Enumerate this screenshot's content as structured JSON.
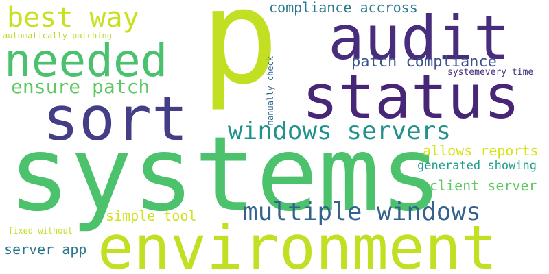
{
  "words": [
    {
      "id": "p",
      "text": "p",
      "color": "#c2df23"
    },
    {
      "id": "systems",
      "text": "systems",
      "color": "#4cc26c"
    },
    {
      "id": "environment",
      "text": "environment",
      "color": "#c2df23"
    },
    {
      "id": "audit",
      "text": "audit",
      "color": "#472d7b"
    },
    {
      "id": "status",
      "text": "status",
      "color": "#482677"
    },
    {
      "id": "sort",
      "text": "sort",
      "color": "#433e85"
    },
    {
      "id": "needed",
      "text": "needed",
      "color": "#4ac16d"
    },
    {
      "id": "best-way",
      "text": "best way",
      "color": "#c8e020"
    },
    {
      "id": "windows-servers",
      "text": "windows servers",
      "color": "#21918c"
    },
    {
      "id": "multiple-windows",
      "text": "multiple windows",
      "color": "#33638d"
    },
    {
      "id": "ensure-patch",
      "text": "ensure patch",
      "color": "#5ec962"
    },
    {
      "id": "patch-compliance",
      "text": "patch compliance",
      "color": "#3b528b"
    },
    {
      "id": "compliance-accross",
      "text": "compliance accross",
      "color": "#2a788e"
    },
    {
      "id": "allows-reports",
      "text": "allows reports",
      "color": "#d8e219"
    },
    {
      "id": "generated-showing",
      "text": "generated showing",
      "color": "#1f9e89"
    },
    {
      "id": "client-server",
      "text": "client server",
      "color": "#5ec962"
    },
    {
      "id": "simple-tool",
      "text": "simple tool",
      "color": "#d0e11c"
    },
    {
      "id": "server-app",
      "text": "server app",
      "color": "#2a788e"
    },
    {
      "id": "systemevery-time",
      "text": "systemevery time",
      "color": "#46337e"
    },
    {
      "id": "automatically-patching",
      "text": "automatically patching",
      "color": "#b5de2b"
    },
    {
      "id": "manually-check",
      "text": "manually check",
      "color": "#31688e"
    },
    {
      "id": "fixed-without",
      "text": "fixed without",
      "color": "#c2df23"
    }
  ]
}
